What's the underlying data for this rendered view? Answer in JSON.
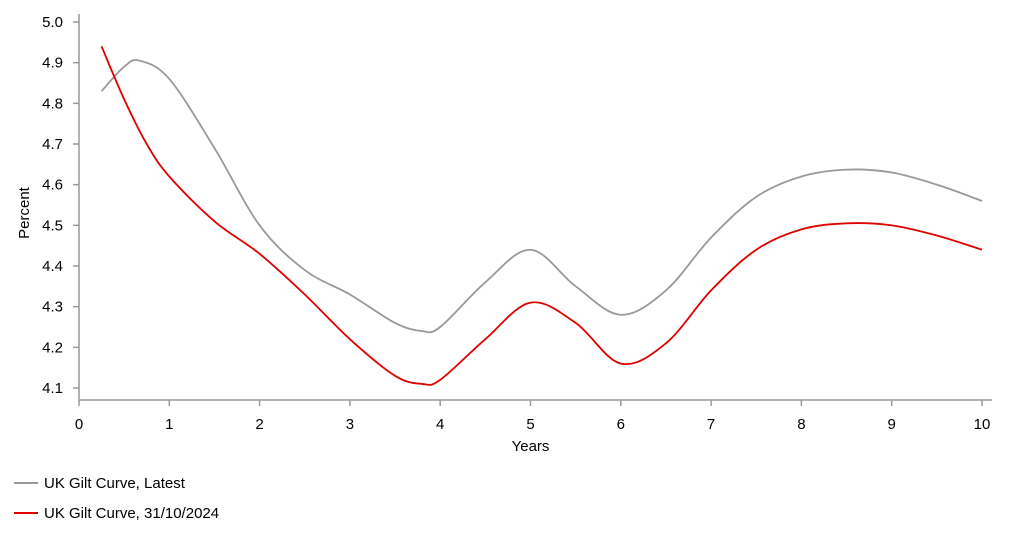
{
  "chart_data": {
    "type": "line",
    "xlabel": "Years",
    "ylabel": "Percent",
    "xlim": [
      0,
      10
    ],
    "ylim": [
      4.07,
      5.0
    ],
    "x_ticks": [
      0,
      1,
      2,
      3,
      4,
      5,
      6,
      7,
      8,
      9,
      10
    ],
    "y_ticks": [
      4.1,
      4.2,
      4.3,
      4.4,
      4.5,
      4.6,
      4.7,
      4.8,
      4.9,
      5.0
    ],
    "x_tick_labels": [
      "0",
      "1",
      "2",
      "3",
      "4",
      "5",
      "6",
      "7",
      "8",
      "9",
      "10"
    ],
    "y_tick_labels": [
      "4.1",
      "4.2",
      "4.3",
      "4.4",
      "4.5",
      "4.6",
      "4.7",
      "4.8",
      "4.9",
      "5.0"
    ],
    "grid": false,
    "legend_position": "bottom-left",
    "series": [
      {
        "name": "UK Gilt Curve, Latest",
        "color": "#999999",
        "x": [
          0.25,
          0.5,
          0.67,
          1,
          1.5,
          2,
          2.5,
          3,
          3.5,
          3.8,
          4,
          4.5,
          5,
          5.5,
          6,
          6.5,
          7,
          7.5,
          8,
          8.5,
          9,
          9.5,
          10
        ],
        "y": [
          4.83,
          4.89,
          4.905,
          4.86,
          4.69,
          4.5,
          4.39,
          4.33,
          4.26,
          4.24,
          4.25,
          4.36,
          4.44,
          4.35,
          4.28,
          4.34,
          4.47,
          4.57,
          4.62,
          4.637,
          4.63,
          4.6,
          4.56
        ]
      },
      {
        "name": "UK Gilt Curve, 31/10/2024",
        "color": "#e00000",
        "x": [
          0.25,
          0.5,
          0.75,
          1,
          1.5,
          2,
          2.5,
          3,
          3.5,
          3.8,
          4,
          4.5,
          5,
          5.5,
          6,
          6.5,
          7,
          7.5,
          8,
          8.5,
          9,
          9.5,
          10
        ],
        "y": [
          4.94,
          4.81,
          4.7,
          4.62,
          4.51,
          4.43,
          4.33,
          4.22,
          4.13,
          4.11,
          4.12,
          4.22,
          4.31,
          4.26,
          4.16,
          4.21,
          4.34,
          4.44,
          4.49,
          4.505,
          4.5,
          4.475,
          4.44
        ]
      }
    ]
  }
}
